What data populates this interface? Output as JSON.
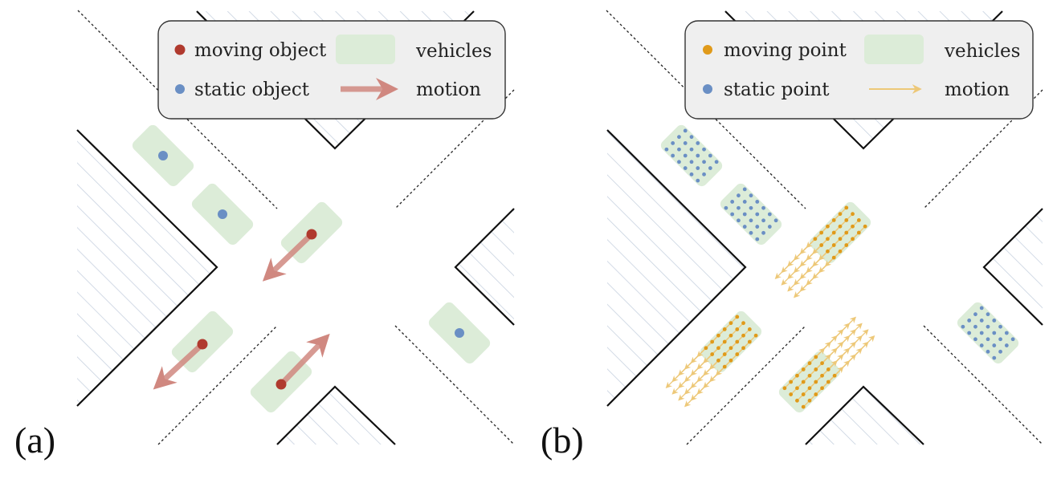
{
  "colors": {
    "moving_object": "#b03a2e",
    "static_object": "#6a8fc4",
    "moving_point": "#e09a1a",
    "static_point": "#6a8fc4",
    "vehicle_fill": "#dcecd8",
    "object_motion_arrow": "#d08880",
    "point_motion_arrow": "#edc878",
    "hatch": "#c8d2e0",
    "legend_bg": "#efefef",
    "road_edge": "#111111"
  },
  "panels": [
    {
      "id": "a",
      "label": "(a)",
      "legend": {
        "moving": "moving object",
        "static": "static object",
        "vehicles": "vehicles",
        "motion": "motion"
      }
    },
    {
      "id": "b",
      "label": "(b)",
      "legend": {
        "moving": "moving point",
        "static": "static point",
        "vehicles": "vehicles",
        "motion": "motion"
      }
    }
  ],
  "vehicles_a": [
    {
      "state": "static",
      "motion": null
    },
    {
      "state": "static",
      "motion": null
    },
    {
      "state": "moving",
      "motion": "toward lower-left"
    },
    {
      "state": "moving",
      "motion": "toward lower-left"
    },
    {
      "state": "moving",
      "motion": "toward upper-right"
    },
    {
      "state": "static",
      "motion": null
    }
  ],
  "vehicles_b": [
    {
      "state": "static",
      "motion": null
    },
    {
      "state": "static",
      "motion": null
    },
    {
      "state": "moving",
      "motion": "toward lower-left"
    },
    {
      "state": "moving",
      "motion": "toward lower-left"
    },
    {
      "state": "moving",
      "motion": "toward upper-right"
    },
    {
      "state": "static",
      "motion": null
    }
  ]
}
